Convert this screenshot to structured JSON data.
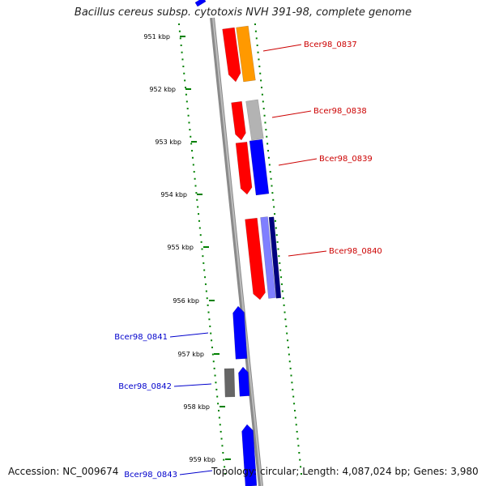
{
  "title": "Bacillus cereus subsp. cytotoxis NVH 391-98, complete genome",
  "accession": "Accession: NC_009674",
  "topology": "Topology: circular; Length: 4,087,024 bp; Genes: 3,980",
  "colors": {
    "red": "#ff0000",
    "orange": "#ff9900",
    "blue": "#0000ff",
    "gray": "#b3b3b3",
    "dark_gray": "#666666",
    "navy": "#000080",
    "lavender": "#7f7fff",
    "tick_green": "#008000",
    "label_red": "#cc0000",
    "label_blue": "#0000cc"
  },
  "ticks": [
    "951 kbp",
    "952 kbp",
    "953 kbp",
    "954 kbp",
    "955 kbp",
    "956 kbp",
    "957 kbp",
    "958 kbp",
    "959 kbp"
  ],
  "gene_labels": [
    {
      "name": "Bcer98_0837",
      "side": "right",
      "color": "label_red"
    },
    {
      "name": "Bcer98_0838",
      "side": "right",
      "color": "label_red"
    },
    {
      "name": "Bcer98_0839",
      "side": "right",
      "color": "label_red"
    },
    {
      "name": "Bcer98_0840",
      "side": "right",
      "color": "label_red"
    },
    {
      "name": "Bcer98_0841",
      "side": "left",
      "color": "label_blue"
    },
    {
      "name": "Bcer98_0842",
      "side": "left",
      "color": "label_blue"
    },
    {
      "name": "Bcer98_0843",
      "side": "left",
      "color": "label_blue"
    }
  ]
}
